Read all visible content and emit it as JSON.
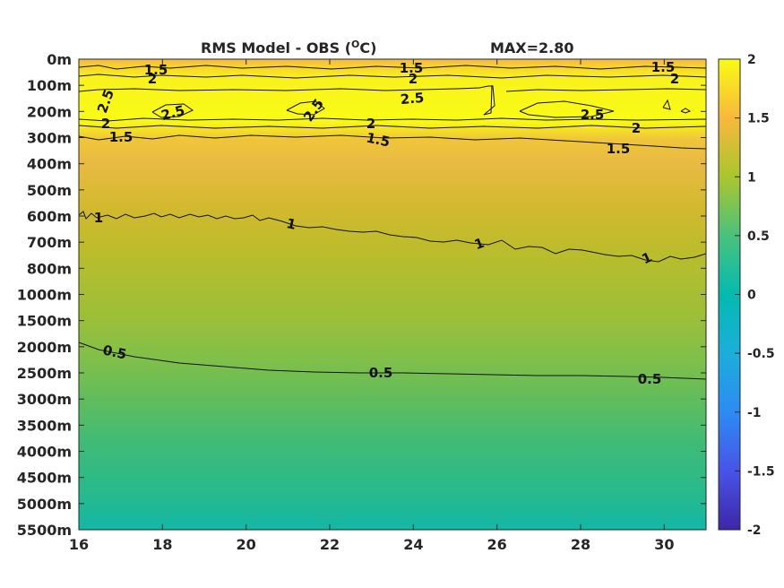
{
  "chart_data": {
    "type": "heatmap",
    "title": "RMS Model - OBS (",
    "title_unit_sup": "O",
    "title_unit_tail": "C)",
    "max_label": "MAX=2.80",
    "x_ticks": [
      "16",
      "18",
      "20",
      "22",
      "24",
      "26",
      "28",
      "30"
    ],
    "x_tick_values": [
      16,
      18,
      20,
      22,
      24,
      26,
      28,
      30
    ],
    "xlim": [
      16,
      31
    ],
    "y_ticks": [
      "0m",
      "100m",
      "200m",
      "300m",
      "400m",
      "500m",
      "600m",
      "700m",
      "800m",
      "1000m",
      "1500m",
      "2000m",
      "2500m",
      "3000m",
      "3500m",
      "4000m",
      "4500m",
      "5000m",
      "5500m"
    ],
    "colorbar": {
      "ticks": [
        "-2",
        "-1.5",
        "-1",
        "-0.5",
        "0",
        "0.5",
        "1",
        "1.5",
        "2"
      ],
      "tick_values": [
        -2,
        -1.5,
        -1,
        -0.5,
        0,
        0.5,
        1,
        1.5,
        2
      ],
      "range": [
        -2,
        2
      ],
      "colormap": "parula"
    },
    "depth_profile": [
      {
        "depth": "0m",
        "value": 1.5
      },
      {
        "depth": "100m",
        "value": 2.2
      },
      {
        "depth": "200m",
        "value": 2.5
      },
      {
        "depth": "300m",
        "value": 1.6
      },
      {
        "depth": "400m",
        "value": 1.4
      },
      {
        "depth": "500m",
        "value": 1.3
      },
      {
        "depth": "600m",
        "value": 1.1
      },
      {
        "depth": "700m",
        "value": 1.0
      },
      {
        "depth": "800m",
        "value": 0.95
      },
      {
        "depth": "1000m",
        "value": 0.9
      },
      {
        "depth": "1500m",
        "value": 0.8
      },
      {
        "depth": "2000m",
        "value": 0.65
      },
      {
        "depth": "2500m",
        "value": 0.5
      },
      {
        "depth": "3000m",
        "value": 0.42
      },
      {
        "depth": "3500m",
        "value": 0.36
      },
      {
        "depth": "4000m",
        "value": 0.32
      },
      {
        "depth": "4500m",
        "value": 0.3
      },
      {
        "depth": "5000m",
        "value": 0.28
      },
      {
        "depth": "5500m",
        "value": 0.25
      }
    ],
    "contour_labels": [
      "0.5",
      "0.5",
      "0.5",
      "1",
      "1",
      "1",
      "1",
      "1.5",
      "1.5",
      "1.5",
      "1.5",
      "1.5",
      "1.5",
      "2",
      "2",
      "2",
      "2",
      "2",
      "2",
      "2.5",
      "2.5",
      "2.5",
      "2.5",
      "2.5"
    ]
  }
}
